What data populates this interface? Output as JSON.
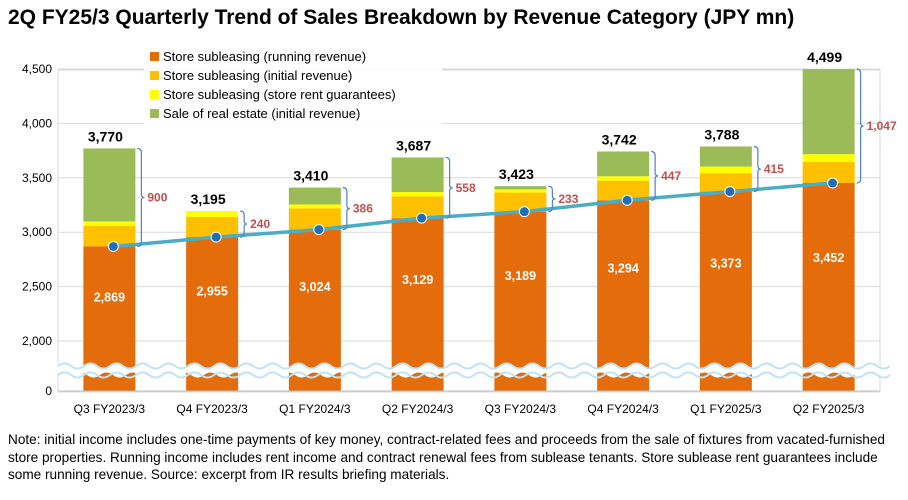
{
  "title": "2Q FY25/3 Quarterly Trend of Sales Breakdown by Revenue Category (JPY mn)",
  "note": "Note: initial income includes one-time payments of key money, contract-related fees and proceeds from the sale of fixtures from vacated-furnished store properties. Running income includes rent income and contract renewal fees from sublease tenants. Store sublease rent guarantees include some running revenue. Source: excerpt from IR results briefing materials.",
  "chart_data": {
    "type": "bar",
    "stacked": true,
    "categories": [
      "Q3 FY2023/3",
      "Q4 FY2023/3",
      "Q1 FY2024/3",
      "Q2 FY2024/3",
      "Q3 FY2024/3",
      "Q4 FY2024/3",
      "Q1 FY2025/3",
      "Q2 FY2025/3"
    ],
    "series": [
      {
        "name": "Store subleasing (running revenue)",
        "color": "#e46c0a",
        "values": [
          2869,
          2955,
          3024,
          3129,
          3189,
          3294,
          3373,
          3452
        ]
      },
      {
        "name": "Store subleasing (initial revenue)",
        "color": "#ffc000",
        "values": [
          190,
          185,
          195,
          200,
          175,
          180,
          170,
          195
        ]
      },
      {
        "name": "Store subleasing (store rent guarantees)",
        "color": "#ffff00",
        "values": [
          40,
          55,
          36,
          40,
          30,
          40,
          60,
          70
        ]
      },
      {
        "name": "Sale of real estate (initial revenue)",
        "color": "#9bbb59",
        "values": [
          671,
          0,
          155,
          318,
          29,
          228,
          185,
          782
        ]
      }
    ],
    "totals": [
      3770,
      3195,
      3410,
      3687,
      3423,
      3742,
      3788,
      4499
    ],
    "differences": [
      900,
      240,
      386,
      558,
      233,
      447,
      415,
      1047
    ],
    "trend_line": {
      "color": "#4bacc6",
      "values": [
        2869,
        2955,
        3024,
        3129,
        3189,
        3294,
        3373,
        3452
      ]
    },
    "y_ticks": [
      0,
      2000,
      2500,
      3000,
      3500,
      4000,
      4500
    ],
    "y_tick_labels": [
      "0",
      "2,000",
      "2,500",
      "3,000",
      "3,500",
      "4,000",
      "4,500"
    ],
    "ylim": [
      0,
      4500
    ],
    "axis_break": true,
    "legend_position": "top-left",
    "grid": true
  }
}
